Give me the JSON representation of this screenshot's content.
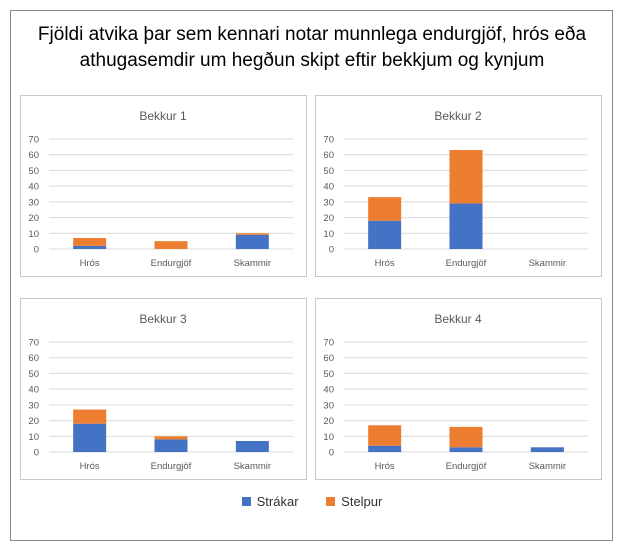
{
  "title": "Fjöldi atvika þar sem kennari notar munnlega endurgjöf, hrós eða athugasemdir um hegðun skipt eftir bekkjum og kynjum",
  "colors": {
    "Strákar": "#4472c4",
    "Stelpur": "#ed7d31"
  },
  "legend": [
    "Strákar",
    "Stelpur"
  ],
  "chart_data": [
    {
      "type": "bar",
      "stacked": true,
      "title": "Bekkur 1",
      "categories": [
        "Hrós",
        "Endurgjöf",
        "Skammir"
      ],
      "ylim": [
        0,
        70
      ],
      "yticks": [
        "0",
        "10",
        "20",
        "30",
        "40",
        "50",
        "60",
        "70"
      ],
      "grid": true,
      "series": [
        {
          "name": "Strákar",
          "values": [
            2,
            0,
            9
          ]
        },
        {
          "name": "Stelpur",
          "values": [
            5,
            5,
            1
          ]
        }
      ]
    },
    {
      "type": "bar",
      "stacked": true,
      "title": "Bekkur 2",
      "categories": [
        "Hrós",
        "Endurgjöf",
        "Skammir"
      ],
      "ylim": [
        0,
        70
      ],
      "yticks": [
        "0",
        "10",
        "20",
        "30",
        "40",
        "50",
        "60",
        "70"
      ],
      "grid": true,
      "series": [
        {
          "name": "Strákar",
          "values": [
            18,
            29,
            0
          ]
        },
        {
          "name": "Stelpur",
          "values": [
            15,
            34,
            0
          ]
        }
      ]
    },
    {
      "type": "bar",
      "stacked": true,
      "title": "Bekkur 3",
      "categories": [
        "Hrós",
        "Endurgjöf",
        "Skammir"
      ],
      "ylim": [
        0,
        70
      ],
      "yticks": [
        "0",
        "10",
        "20",
        "30",
        "40",
        "50",
        "60",
        "70"
      ],
      "grid": true,
      "series": [
        {
          "name": "Strákar",
          "values": [
            18,
            8,
            7
          ]
        },
        {
          "name": "Stelpur",
          "values": [
            9,
            2,
            0
          ]
        }
      ]
    },
    {
      "type": "bar",
      "stacked": true,
      "title": "Bekkur 4",
      "categories": [
        "Hrós",
        "Endurgjöf",
        "Skammir"
      ],
      "ylim": [
        0,
        70
      ],
      "yticks": [
        "0",
        "10",
        "20",
        "30",
        "40",
        "50",
        "60",
        "70"
      ],
      "grid": true,
      "series": [
        {
          "name": "Strákar",
          "values": [
            4,
            3,
            3
          ]
        },
        {
          "name": "Stelpur",
          "values": [
            13,
            13,
            0
          ]
        }
      ]
    }
  ]
}
